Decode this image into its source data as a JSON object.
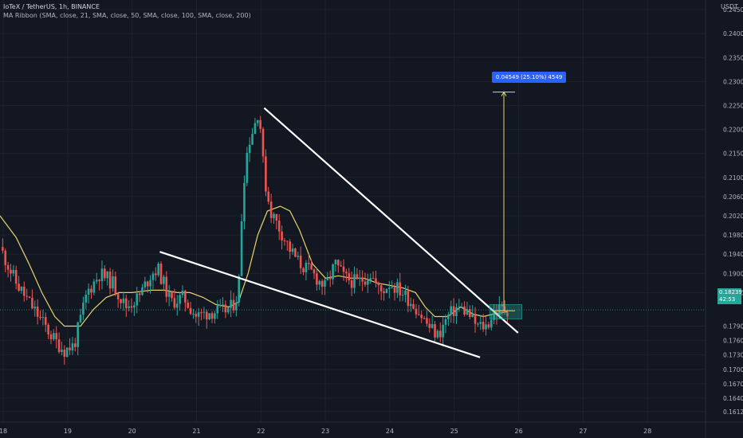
{
  "header": {
    "symbol_line": "IoTeX / TetherUS, 1h, BINANCE",
    "indicator_line": "MA Ribbon (SMA, close, 21, SMA, close, 50, SMA, close, 100, SMA, close, 200)",
    "currency": "USDT"
  },
  "measure_label": "0.04549 (25.10%) 4549",
  "price_tag": {
    "price": "0.18239",
    "countdown": "42:53"
  },
  "colors": {
    "background": "#131722",
    "up": "#26a69a",
    "down": "#ef5350",
    "ma": "#e8d36b",
    "trendline": "#ffffff",
    "measure": "#2962ff"
  },
  "chart_data": {
    "type": "candlestick",
    "ylim": [
      0.159,
      0.247
    ],
    "y_ticks": [
      "0.24500",
      "0.24000",
      "0.23500",
      "0.23000",
      "0.22500",
      "0.22000",
      "0.21500",
      "0.21000",
      "0.20600",
      "0.20200",
      "0.19800",
      "0.19400",
      "0.19000",
      "0.18600",
      "0.17900",
      "0.17600",
      "0.17300",
      "0.17000",
      "0.16700",
      "0.16400",
      "0.16120"
    ],
    "y_tick_values": [
      0.245,
      0.24,
      0.235,
      0.23,
      0.225,
      0.22,
      0.215,
      0.21,
      0.206,
      0.202,
      0.198,
      0.194,
      0.19,
      0.186,
      0.179,
      0.176,
      0.173,
      0.17,
      0.167,
      0.164,
      0.1612
    ],
    "x_ticks": [
      "18",
      "19",
      "20",
      "21",
      "22",
      "23",
      "24",
      "25",
      "26",
      "27",
      "28"
    ],
    "x_tick_values": [
      18,
      19,
      20,
      21,
      22,
      23,
      24,
      25,
      26,
      27,
      28
    ],
    "xlim": [
      17.95,
      28.9
    ],
    "last_x": 25.83,
    "close_keyframes": [
      [
        17.95,
        0.1955
      ],
      [
        18.2,
        0.188
      ],
      [
        18.4,
        0.184
      ],
      [
        18.6,
        0.18
      ],
      [
        18.8,
        0.176
      ],
      [
        18.95,
        0.174
      ],
      [
        19.1,
        0.175
      ],
      [
        19.3,
        0.186
      ],
      [
        19.5,
        0.19
      ],
      [
        19.7,
        0.188
      ],
      [
        19.9,
        0.183
      ],
      [
        20.1,
        0.185
      ],
      [
        20.3,
        0.19
      ],
      [
        20.4,
        0.191
      ],
      [
        20.6,
        0.184
      ],
      [
        20.8,
        0.185
      ],
      [
        21.0,
        0.181
      ],
      [
        21.2,
        0.182
      ],
      [
        21.4,
        0.182
      ],
      [
        21.55,
        0.183
      ],
      [
        21.65,
        0.186
      ],
      [
        21.72,
        0.208
      ],
      [
        21.8,
        0.217
      ],
      [
        21.9,
        0.221
      ],
      [
        21.97,
        0.2245
      ],
      [
        22.05,
        0.21
      ],
      [
        22.15,
        0.203
      ],
      [
        22.3,
        0.199
      ],
      [
        22.45,
        0.195
      ],
      [
        22.6,
        0.192
      ],
      [
        22.8,
        0.19
      ],
      [
        23.0,
        0.187
      ],
      [
        23.15,
        0.192
      ],
      [
        23.3,
        0.189
      ],
      [
        23.5,
        0.188
      ],
      [
        23.7,
        0.19
      ],
      [
        23.85,
        0.186
      ],
      [
        24.0,
        0.188
      ],
      [
        24.2,
        0.186
      ],
      [
        24.4,
        0.183
      ],
      [
        24.6,
        0.179
      ],
      [
        24.75,
        0.177
      ],
      [
        24.9,
        0.181
      ],
      [
        25.05,
        0.183
      ],
      [
        25.2,
        0.182
      ],
      [
        25.35,
        0.179
      ],
      [
        25.5,
        0.179
      ],
      [
        25.6,
        0.1815
      ],
      [
        25.7,
        0.1825
      ],
      [
        25.83,
        0.1824
      ]
    ],
    "ma_points": [
      [
        17.95,
        0.202
      ],
      [
        18.2,
        0.1975
      ],
      [
        18.4,
        0.192
      ],
      [
        18.6,
        0.186
      ],
      [
        18.8,
        0.181
      ],
      [
        18.95,
        0.179
      ],
      [
        19.2,
        0.179
      ],
      [
        19.4,
        0.1825
      ],
      [
        19.6,
        0.185
      ],
      [
        19.8,
        0.186
      ],
      [
        20.0,
        0.186
      ],
      [
        20.3,
        0.1865
      ],
      [
        20.5,
        0.1865
      ],
      [
        20.7,
        0.186
      ],
      [
        20.9,
        0.186
      ],
      [
        21.1,
        0.185
      ],
      [
        21.3,
        0.1835
      ],
      [
        21.5,
        0.183
      ],
      [
        21.65,
        0.184
      ],
      [
        21.8,
        0.19
      ],
      [
        21.95,
        0.198
      ],
      [
        22.1,
        0.203
      ],
      [
        22.3,
        0.204
      ],
      [
        22.45,
        0.203
      ],
      [
        22.6,
        0.199
      ],
      [
        22.8,
        0.192
      ],
      [
        23.0,
        0.189
      ],
      [
        23.2,
        0.1895
      ],
      [
        23.4,
        0.189
      ],
      [
        23.6,
        0.189
      ],
      [
        23.8,
        0.188
      ],
      [
        24.0,
        0.1875
      ],
      [
        24.2,
        0.187
      ],
      [
        24.4,
        0.186
      ],
      [
        24.55,
        0.183
      ],
      [
        24.7,
        0.181
      ],
      [
        24.9,
        0.181
      ],
      [
        25.1,
        0.183
      ],
      [
        25.3,
        0.1815
      ],
      [
        25.45,
        0.181
      ],
      [
        25.6,
        0.1815
      ],
      [
        25.83,
        0.182
      ]
    ],
    "trendlines": [
      {
        "x1": 22.05,
        "y1": 0.2245,
        "x2": 25.99,
        "y2": 0.1776
      },
      {
        "x1": 20.43,
        "y1": 0.1945,
        "x2": 25.4,
        "y2": 0.1725
      }
    ],
    "measure": {
      "x": 25.77,
      "y_from": 0.1822,
      "y_to": 0.2278
    },
    "target_zone": {
      "x1": 25.55,
      "x2": 26.05,
      "y1": 0.1805,
      "y2": 0.1835
    },
    "current_price": 0.18239
  }
}
